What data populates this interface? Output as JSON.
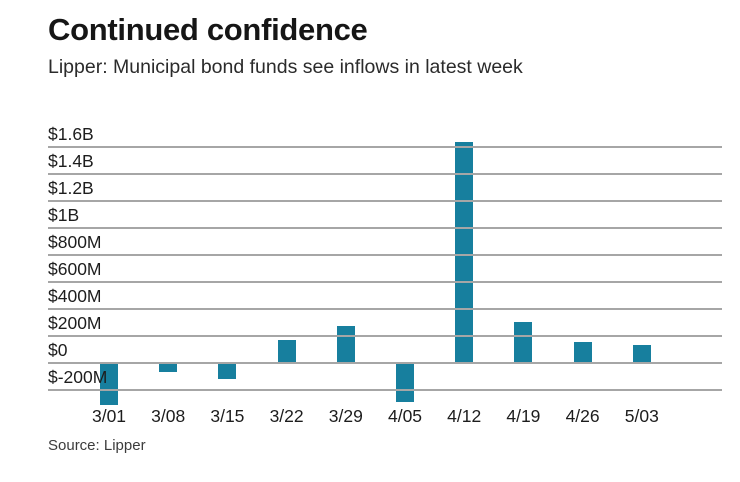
{
  "header": {
    "title": "Continued confidence",
    "subtitle": "Lipper: Municipal bond funds see inflows in latest week"
  },
  "footer": {
    "source": "Source: Lipper"
  },
  "chart_data": {
    "type": "bar",
    "title": "Continued confidence",
    "subtitle": "Lipper: Municipal bond funds see inflows in latest week",
    "source": "Source: Lipper",
    "unit": "USD millions",
    "categories": [
      "3/01",
      "3/08",
      "3/15",
      "3/22",
      "3/29",
      "4/05",
      "4/12",
      "4/19",
      "4/26",
      "5/03"
    ],
    "values_musd": [
      -320,
      -75,
      -125,
      165,
      270,
      -295,
      1630,
      295,
      145,
      125
    ],
    "y_ticks": [
      {
        "label": "$1.6B",
        "value": 1600
      },
      {
        "label": "$1.4B",
        "value": 1400
      },
      {
        "label": "$1.2B",
        "value": 1200
      },
      {
        "label": "$1B",
        "value": 1000
      },
      {
        "label": "$800M",
        "value": 800
      },
      {
        "label": "$600M",
        "value": 600
      },
      {
        "label": "$400M",
        "value": 400
      },
      {
        "label": "$200M",
        "value": 200
      },
      {
        "label": "$0",
        "value": 0
      },
      {
        "label": "$-200M",
        "value": -200
      }
    ],
    "ylim": [
      -350,
      1650
    ],
    "xlabel": "",
    "ylabel": "",
    "grid": "horizontal",
    "legend": "none",
    "bar_color": "#177f9e",
    "grid_color": "#a6a6a6"
  }
}
